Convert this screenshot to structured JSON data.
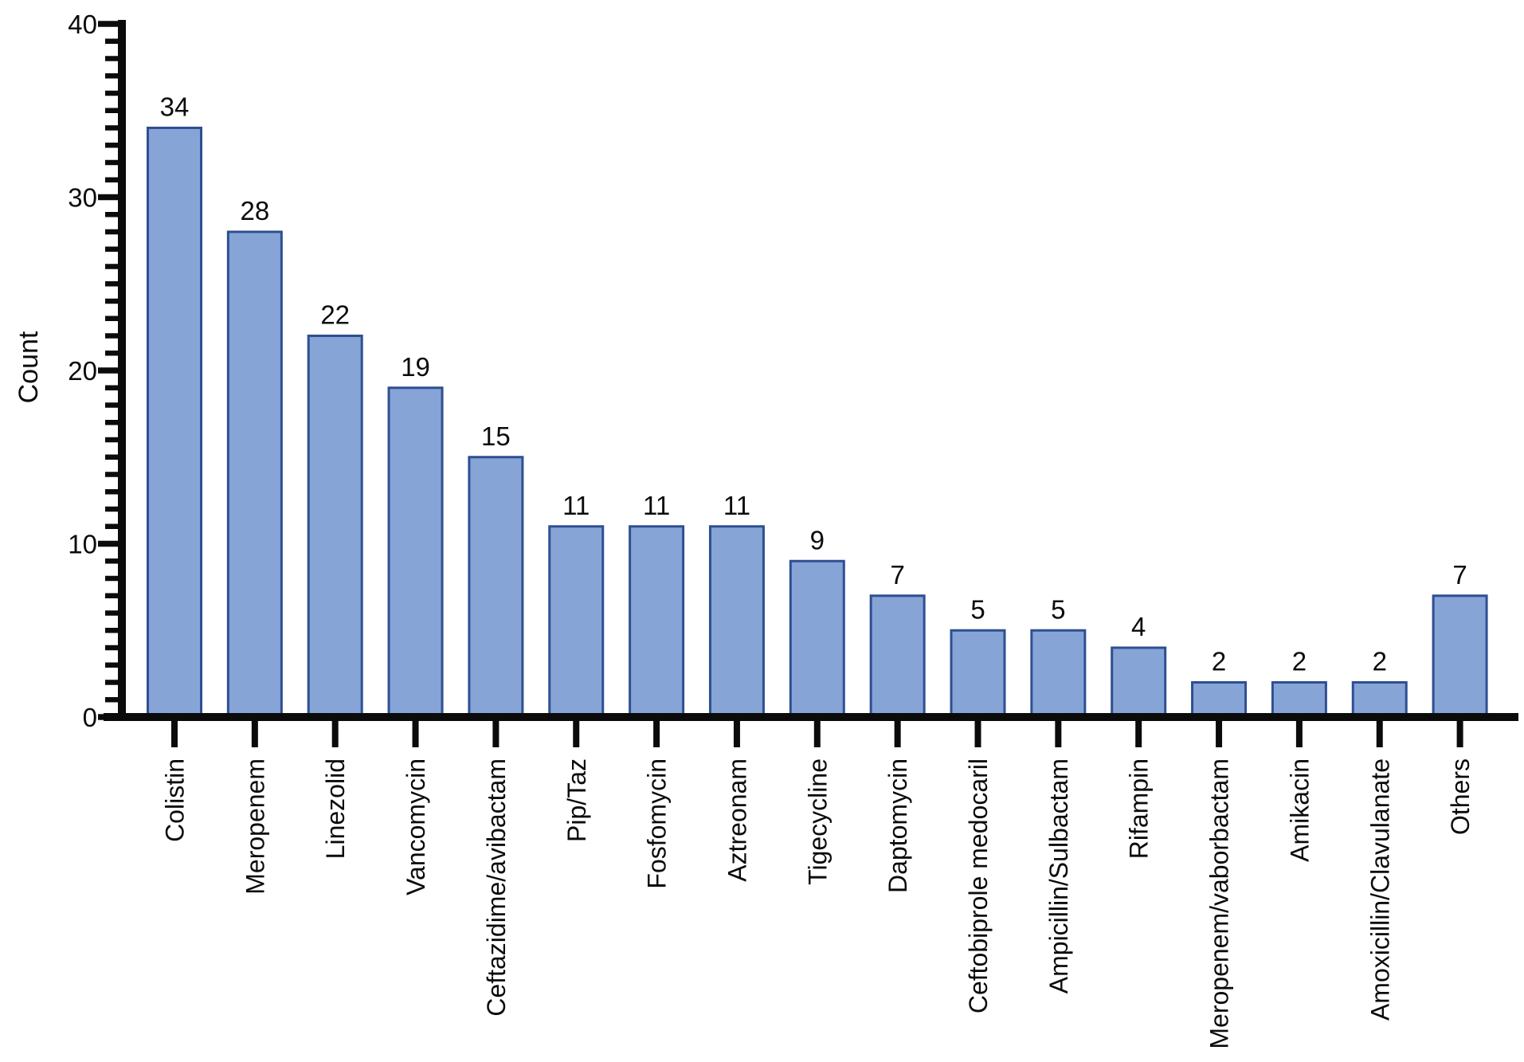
{
  "figure": {
    "background": "#ffffff"
  },
  "chart_data": {
    "type": "bar",
    "title": "",
    "xlabel": "",
    "ylabel": "Count",
    "ylim": [
      0,
      40
    ],
    "yticks": [
      0,
      10,
      20,
      30,
      40
    ],
    "ytick_minor_step": 1,
    "grid": false,
    "legend": null,
    "bar_fill": "#86A4D6",
    "bar_stroke": "#2F4F92",
    "axis_color": "#0b0b0b",
    "text_color": "#0b0b0b",
    "categories": [
      "Colistin",
      "Meropenem",
      "Linezolid",
      "Vancomycin",
      "Ceftazidime/avibactam",
      "Pip/Taz",
      "Fosfomycin",
      "Aztreonam",
      "Tigecycline",
      "Daptomycin",
      "Ceftobiprole medocaril",
      "Ampicillin/Sulbactam",
      "Rifampin",
      "Meropenem/vaborbactam",
      "Amikacin",
      "Amoxicillin/Clavulanate",
      "Others"
    ],
    "values": [
      34,
      28,
      22,
      19,
      15,
      11,
      11,
      11,
      9,
      7,
      5,
      5,
      4,
      2,
      2,
      2,
      7
    ]
  }
}
